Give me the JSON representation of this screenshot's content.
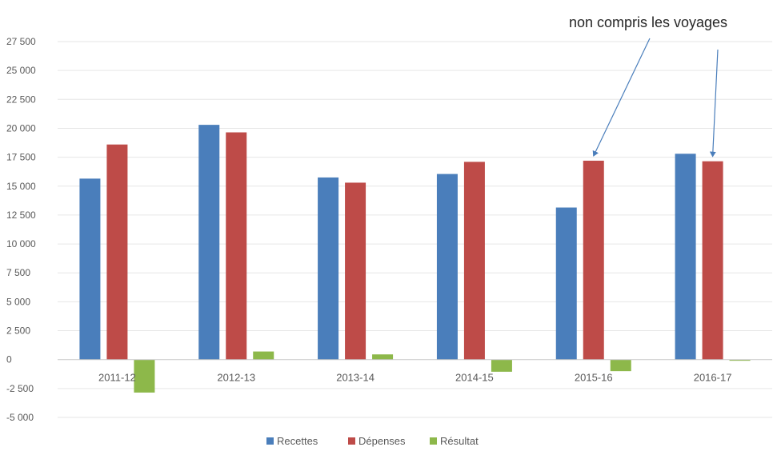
{
  "chart_data": {
    "type": "bar",
    "categories": [
      "2011-12",
      "2012-13",
      "2013-14",
      "2014-15",
      "2015-16",
      "2016-17"
    ],
    "series": [
      {
        "name": "Recettes",
        "color": "#4a7ebb",
        "values": [
          15650,
          20300,
          15750,
          16050,
          13150,
          17800
        ]
      },
      {
        "name": "Dépenses",
        "color": "#be4b48",
        "values": [
          18600,
          19650,
          15300,
          17100,
          17200,
          17150
        ]
      },
      {
        "name": "Résultat",
        "color": "#8db84a",
        "values": [
          -2850,
          700,
          450,
          -1050,
          -1000,
          -100
        ]
      }
    ],
    "yticks": [
      "27 500",
      "25 000",
      "22 500",
      "20 000",
      "17 500",
      "15 000",
      "12 500",
      "10 000",
      "7 500",
      "5 000",
      "2 500",
      "0",
      "-2 500",
      "-5 000"
    ],
    "ylim": [
      -5000,
      27500
    ],
    "ytick_step": 2500,
    "grid": true,
    "legend_position": "bottom",
    "annotation": {
      "text": "non compris les voyages",
      "targets": [
        "2015-16",
        "2016-17"
      ],
      "target_series": "Dépenses"
    },
    "title": "",
    "xlabel": "",
    "ylabel": ""
  }
}
